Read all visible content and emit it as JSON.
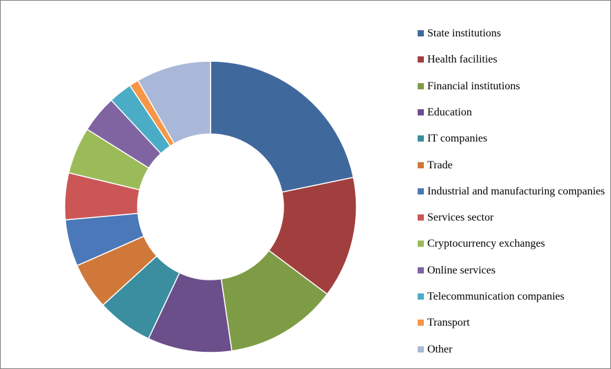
{
  "chart_data": {
    "type": "donut",
    "title": "",
    "unit": "%",
    "legend_position": "right",
    "start_angle_deg": 0,
    "direction": "clockwise",
    "slices": [
      {
        "label": "State institutions",
        "value": 21,
        "color": "#3f689d"
      },
      {
        "label": "Health facilities",
        "value": 13,
        "color": "#a03f3d"
      },
      {
        "label": "Financial institutions",
        "value": 12,
        "color": "#7e9c46"
      },
      {
        "label": "Education",
        "value": 9,
        "color": "#6a4f8a"
      },
      {
        "label": "IT companies",
        "value": 6,
        "color": "#3a8ea0"
      },
      {
        "label": "Trade",
        "value": 5,
        "color": "#d0783a"
      },
      {
        "label": "Industrial and manufacturing companies",
        "value": 5,
        "color": "#4a78b8"
      },
      {
        "label": "Services sector",
        "value": 5,
        "color": "#cc5656"
      },
      {
        "label": "Cryptocurrency exchanges",
        "value": 5,
        "color": "#9bbb59"
      },
      {
        "label": "Online services",
        "value": 4,
        "color": "#8064a2"
      },
      {
        "label": "Telecommunication companies",
        "value": 2.5,
        "color": "#4bacc6"
      },
      {
        "label": "Transport",
        "value": 1,
        "color": "#f79646"
      },
      {
        "label": "Other",
        "value": 8,
        "color": "#a9b8d8"
      }
    ]
  }
}
